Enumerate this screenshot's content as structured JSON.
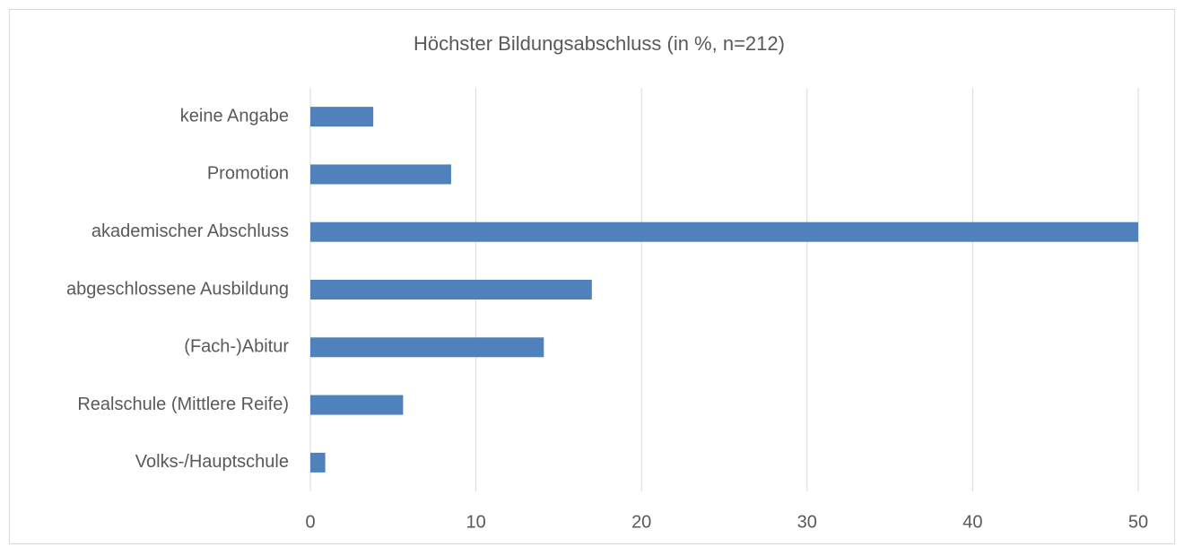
{
  "chart_data": {
    "type": "barh",
    "title": "Höchster Bildungsabschluss (in %, n=212)",
    "categories": [
      "keine Angabe",
      "Promotion",
      "akademischer Abschluss",
      "abgeschlossene Ausbildung",
      "(Fach-)Abitur",
      "Realschule (Mittlere Reife)",
      "Volks-/Hauptschule"
    ],
    "values": [
      3.8,
      8.5,
      50.0,
      17.0,
      14.1,
      5.6,
      0.9
    ],
    "color": "#4f81bd",
    "xlim": [
      0,
      50
    ],
    "xticks": [
      0,
      10,
      20,
      30,
      40,
      50
    ],
    "grid": true
  }
}
